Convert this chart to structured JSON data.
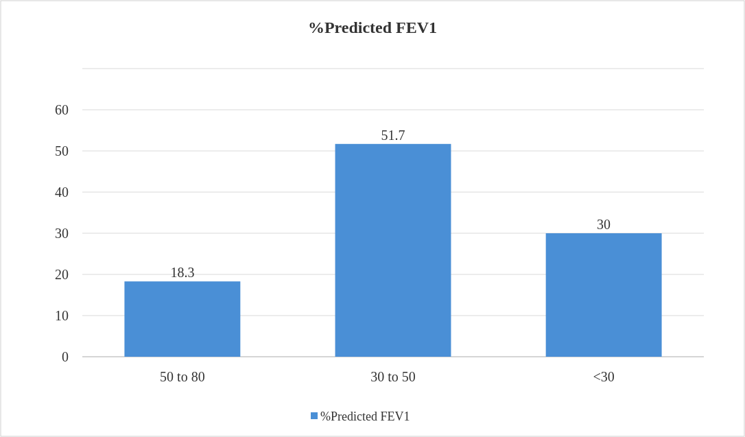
{
  "chart_data": {
    "type": "bar",
    "title": "%Predicted FEV1",
    "categories": [
      "50 to 80",
      "30 to 50",
      "<30"
    ],
    "series": [
      {
        "name": "%Predicted FEV1",
        "color": "#4a8fd6",
        "values": [
          18.3,
          51.7,
          30
        ]
      }
    ],
    "ylim": [
      0,
      70
    ],
    "yticks": [
      0,
      10,
      20,
      30,
      40,
      50,
      60,
      {
        "value": 70,
        "label": null
      }
    ],
    "grid": "y",
    "legend": "bottom",
    "data_labels": true
  }
}
